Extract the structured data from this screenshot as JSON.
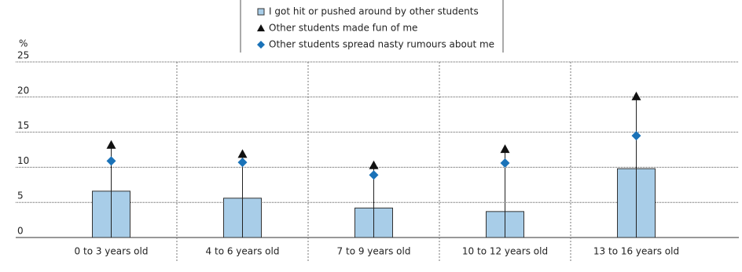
{
  "chart_data": {
    "type": "bar-marker",
    "y_label": "%",
    "categories": [
      "0 to 3 years old",
      "4 to 6 years old",
      "7 to 9 years old",
      "10 to 12 years old",
      "13 to 16 years old"
    ],
    "series": [
      {
        "name": "I got hit or pushed around by other students",
        "color": "#a8cde8",
        "values": [
          6.6,
          5.6,
          4.2,
          3.7,
          9.8
        ]
      },
      {
        "name": "Other students made fun of me",
        "color": "#111111",
        "values": [
          13.2,
          11.9,
          10.3,
          12.6,
          20.1
        ]
      },
      {
        "name": "Other students spread nasty rumours about me",
        "color": "#1a72b8",
        "values": [
          10.9,
          10.7,
          8.9,
          10.6,
          14.5
        ]
      }
    ],
    "ylim": [
      0,
      25
    ],
    "yticks": [
      0,
      5,
      10,
      15,
      20,
      25
    ],
    "grid": true
  }
}
